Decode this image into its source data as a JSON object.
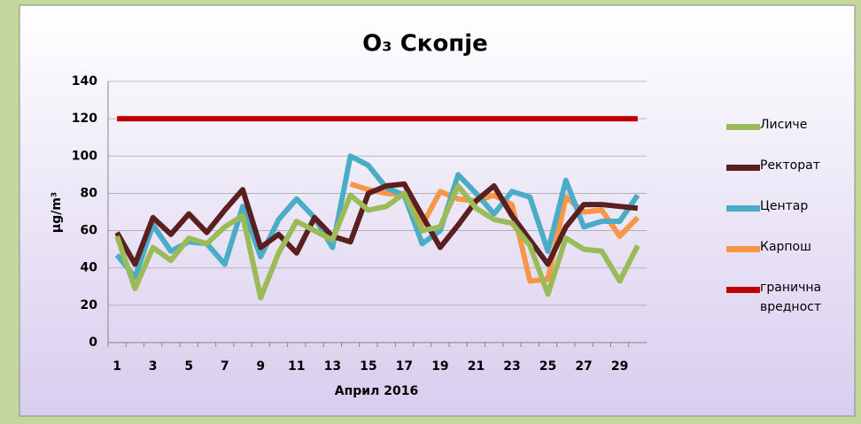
{
  "chart_data": {
    "type": "line",
    "title": "O₃ Скопје",
    "x_label": "Април 2016",
    "y_label": "µg/m³",
    "categories": [
      "1",
      null,
      "3",
      null,
      "5",
      null,
      "7",
      null,
      "9",
      null,
      "11",
      null,
      "13",
      null,
      "15",
      null,
      "17",
      null,
      "19",
      null,
      "21",
      null,
      "23",
      null,
      "25",
      null,
      "27",
      null,
      "29",
      null
    ],
    "series": [
      {
        "name": "Лисиче",
        "color": "#9bbb59",
        "values": [
          57,
          29,
          51,
          44,
          56,
          53,
          62,
          68,
          24,
          48,
          65,
          60,
          55,
          79,
          71,
          73,
          80,
          60,
          62,
          84,
          72,
          66,
          64,
          52,
          26,
          56,
          50,
          49,
          33,
          52
        ]
      },
      {
        "name": "Ректорат",
        "color": "#5c1f1f",
        "values": [
          59,
          42,
          67,
          58,
          69,
          59,
          71,
          82,
          51,
          58,
          48,
          67,
          57,
          54,
          80,
          84,
          85,
          68,
          51,
          63,
          76,
          84,
          68,
          55,
          42,
          62,
          74,
          74,
          73,
          72
        ]
      },
      {
        "name": "Центар",
        "color": "#4bacc6",
        "values": [
          47,
          35,
          63,
          49,
          54,
          53,
          42,
          73,
          46,
          66,
          77,
          67,
          51,
          100,
          95,
          83,
          79,
          53,
          60,
          90,
          80,
          69,
          81,
          78,
          49,
          87,
          62,
          65,
          65,
          79
        ]
      },
      {
        "name": "Карпош",
        "color": "#f79646",
        "values": [
          null,
          null,
          null,
          null,
          null,
          null,
          null,
          null,
          null,
          null,
          null,
          null,
          null,
          85,
          82,
          80,
          79,
          63,
          81,
          77,
          76,
          79,
          74,
          33,
          34,
          78,
          70,
          71,
          57,
          67
        ]
      },
      {
        "name": "гранична вредност",
        "color": "#c00000",
        "values": [
          120,
          120,
          120,
          120,
          120,
          120,
          120,
          120,
          120,
          120,
          120,
          120,
          120,
          120,
          120,
          120,
          120,
          120,
          120,
          120,
          120,
          120,
          120,
          120,
          120,
          120,
          120,
          120,
          120,
          120
        ]
      }
    ],
    "ylim": [
      0,
      140
    ],
    "yticks": [
      0,
      20,
      40,
      60,
      80,
      100,
      120,
      140
    ],
    "grid": true,
    "legend": "right"
  }
}
